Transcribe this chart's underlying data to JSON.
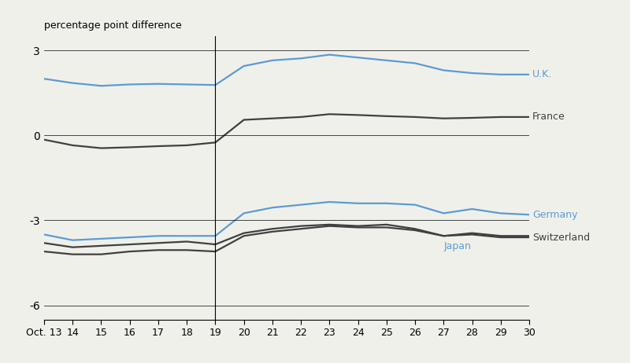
{
  "x_labels": [
    "Oct. 13",
    "14",
    "15",
    "16",
    "17",
    "18",
    "19",
    "20",
    "21",
    "22",
    "23",
    "24",
    "25",
    "26",
    "27",
    "28",
    "29",
    "30"
  ],
  "x_values": [
    13,
    14,
    15,
    16,
    17,
    18,
    19,
    20,
    21,
    22,
    23,
    24,
    25,
    26,
    27,
    28,
    29,
    30
  ],
  "vertical_line_x": 19,
  "UK": [
    2.0,
    1.85,
    1.75,
    1.8,
    1.82,
    1.8,
    1.78,
    2.45,
    2.65,
    2.72,
    2.85,
    2.75,
    2.65,
    2.55,
    2.3,
    2.2,
    2.15,
    2.15
  ],
  "France": [
    -0.15,
    -0.35,
    -0.45,
    -0.42,
    -0.38,
    -0.35,
    -0.25,
    0.55,
    0.6,
    0.65,
    0.75,
    0.72,
    0.68,
    0.65,
    0.6,
    0.62,
    0.65,
    0.65
  ],
  "Germany": [
    -3.5,
    -3.7,
    -3.65,
    -3.6,
    -3.55,
    -3.55,
    -3.55,
    -2.75,
    -2.55,
    -2.45,
    -2.35,
    -2.4,
    -2.4,
    -2.45,
    -2.75,
    -2.6,
    -2.75,
    -2.8
  ],
  "Japan": [
    -3.8,
    -3.95,
    -3.9,
    -3.85,
    -3.8,
    -3.75,
    -3.85,
    -3.45,
    -3.3,
    -3.2,
    -3.15,
    -3.2,
    -3.15,
    -3.3,
    -3.55,
    -3.45,
    -3.55,
    -3.55
  ],
  "Switzerland": [
    -4.1,
    -4.2,
    -4.2,
    -4.1,
    -4.05,
    -4.05,
    -4.1,
    -3.55,
    -3.4,
    -3.3,
    -3.2,
    -3.25,
    -3.25,
    -3.35,
    -3.55,
    -3.5,
    -3.6,
    -3.6
  ],
  "ylim": [
    -6.5,
    3.5
  ],
  "yticks": [
    -6,
    -3,
    0,
    3
  ],
  "ylabel": "percentage point difference",
  "line_color_blue": "#5b9bd5",
  "line_color_dark": "#404040",
  "background_color": "#f0f0eb",
  "label_UK": "U.K.",
  "label_France": "France",
  "label_Germany": "Germany",
  "label_Japan": "Japan",
  "label_Switzerland": "Switzerland"
}
